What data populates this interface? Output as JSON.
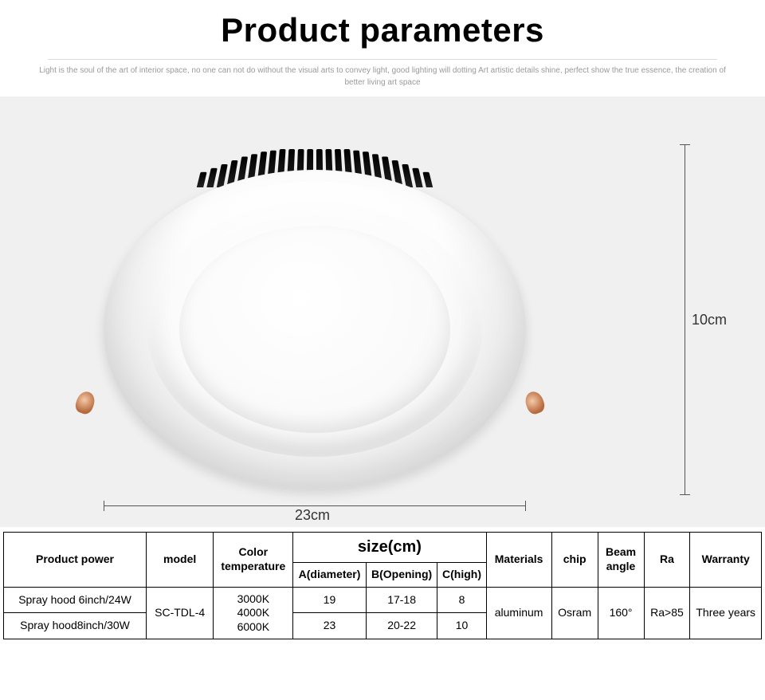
{
  "header": {
    "title": "Product parameters",
    "subtitle": "Light is the soul of the art of interior space, no one can not do without the visual arts to convey light, good lighting will dotting Art artistic details shine, perfect show the true essence, the creation of better living art space"
  },
  "hero": {
    "height_label": "10cm",
    "width_label": "23cm",
    "bg_color": "#f0f0f0",
    "fin_heights": [
      22,
      28,
      34,
      40,
      46,
      50,
      54,
      56,
      58,
      58,
      58,
      58,
      58,
      58,
      58,
      58,
      56,
      54,
      50,
      46,
      40,
      34,
      28,
      22
    ]
  },
  "table": {
    "headers": {
      "power": "Product power",
      "model": "model",
      "color_temp": "Color temperature",
      "size_group": "size(cm)",
      "size_a": "A(diameter)",
      "size_b": "B(Opening)",
      "size_c": "C(high)",
      "materials": "Materials",
      "chip": "chip",
      "beam": "Beam angle",
      "ra": "Ra",
      "warranty": "Warranty"
    },
    "shared": {
      "model": "SC-TDL-4",
      "color_temp": "3000K\n4000K\n6000K",
      "materials": "aluminum",
      "chip": "Osram",
      "beam": "160°",
      "ra": "Ra>85",
      "warranty": "Three years"
    },
    "rows": [
      {
        "power": "Spray hood 6inch/24W",
        "a": "19",
        "b": "17-18",
        "c": "8"
      },
      {
        "power": "Spray hood8inch/30W",
        "a": "23",
        "b": "20-22",
        "c": "10"
      }
    ]
  }
}
